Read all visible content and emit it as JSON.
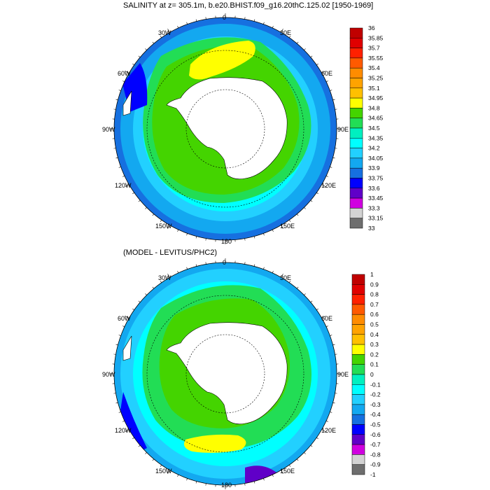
{
  "figure": {
    "title_top": "SALINITY at z= 305.1m, b.e20.BHIST.f09_g16.20thC.125.02 [1950-1969]",
    "title_bottom": "(MODEL - LEVITUS/PHC2)"
  },
  "map_labels": {
    "lon_0": "0",
    "lon_30e": "30E",
    "lon_60e": "60E",
    "lon_90e": "90E",
    "lon_120e": "120E",
    "lon_150e": "150E",
    "lon_180": "180",
    "lon_150w": "150W",
    "lon_120w": "120W",
    "lon_90w": "90W",
    "lon_60w": "60W",
    "lon_30w": "30W"
  },
  "colorbar_top": {
    "labels": [
      "36",
      "35.85",
      "35.7",
      "35.55",
      "35.4",
      "35.25",
      "35.1",
      "34.95",
      "34.8",
      "34.65",
      "34.5",
      "34.35",
      "34.2",
      "34.05",
      "33.9",
      "33.75",
      "33.6",
      "33.45",
      "33.3",
      "33.15",
      "33"
    ],
    "colors": [
      "#c00000",
      "#e00000",
      "#ff2000",
      "#ff5a00",
      "#ff8c00",
      "#ffa300",
      "#ffc000",
      "#ffff00",
      "#44d400",
      "#22dd55",
      "#00f0c0",
      "#00ffff",
      "#22d0ff",
      "#13a8f0",
      "#1670e0",
      "#0000ff",
      "#6000c8",
      "#d000e0",
      "#d3d3d3",
      "#6e6e6e"
    ]
  },
  "colorbar_bottom": {
    "labels": [
      "1",
      "0.9",
      "0.8",
      "0.7",
      "0.6",
      "0.5",
      "0.4",
      "0.3",
      "0.2",
      "0.1",
      "0",
      "-0.1",
      "-0.2",
      "-0.3",
      "-0.4",
      "-0.5",
      "-0.6",
      "-0.7",
      "-0.8",
      "-0.9",
      "-1"
    ],
    "colors": [
      "#c00000",
      "#e00000",
      "#ff2000",
      "#ff5a00",
      "#ff8c00",
      "#ffa300",
      "#ffc000",
      "#ffff00",
      "#44d400",
      "#22dd55",
      "#00f0c0",
      "#00ffff",
      "#22d0ff",
      "#13a8f0",
      "#1670e0",
      "#0000ff",
      "#6000c8",
      "#d000e0",
      "#d3d3d3",
      "#6e6e6e"
    ]
  },
  "map_colors": {
    "ocean_deep": "#1670e0",
    "ocean_mid": "#13a8f0",
    "ocean_light": "#22d0ff",
    "cyan": "#00ffff",
    "teal": "#22dd55",
    "green": "#44d400",
    "yellow": "#ffff00",
    "blue": "#0000ff",
    "purple": "#6000c8",
    "land": "#ffffff"
  }
}
